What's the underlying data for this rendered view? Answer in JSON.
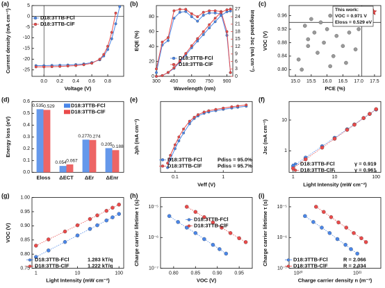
{
  "chart_data": [
    {
      "type": "line",
      "label": "(a)",
      "xlabel": "Voltage (V)",
      "ylabel": "Current density (mA cm⁻²)",
      "xlim": [
        -0.15,
        1.0
      ],
      "xticks": [
        {
          "value": 0,
          "label": "0.0"
        },
        0.2,
        0.4,
        0.6,
        0.8
      ],
      "ylim": [
        -28,
        5
      ],
      "yticks": [
        -25,
        -20,
        -15,
        -10,
        -5,
        0,
        5
      ],
      "zero_lines": true,
      "x": [
        -0.1,
        0,
        0.1,
        0.2,
        0.3,
        0.4,
        0.5,
        0.6,
        0.7,
        0.75,
        0.8,
        0.85,
        0.9,
        0.95
      ],
      "series": [
        {
          "name": "D18:3TTB-FCl",
          "color": "#4a86e8",
          "mode": "line+markers",
          "values": [
            -23.0,
            -23.0,
            -22.9,
            -22.8,
            -22.7,
            -22.5,
            -22.2,
            -21.6,
            -20.3,
            -18.5,
            -15.5,
            -10.5,
            -3.5,
            4.5
          ]
        },
        {
          "name": "D18:3TTB-ClF",
          "color": "#ea4a4a",
          "mode": "line+markers",
          "values": [
            -23.6,
            -23.6,
            -23.5,
            -23.4,
            -23.2,
            -23.0,
            -22.6,
            -21.9,
            -20.0,
            -17.8,
            -14.0,
            -7.5,
            1.5,
            null
          ]
        }
      ]
    },
    {
      "type": "line",
      "label": "(b)",
      "xlabel": "Wavelength (nm)",
      "ylabel": "EQE (%)",
      "y2label": "Integrated Jsc (mA cm⁻²)",
      "xlim": [
        300,
        950
      ],
      "xticks": [
        300,
        450,
        600,
        750,
        900
      ],
      "ylim": [
        0,
        95
      ],
      "yticks": [
        0,
        20,
        40,
        60,
        80
      ],
      "y2lim": [
        0,
        28.5
      ],
      "y2ticks": [
        0,
        3,
        6,
        9,
        12,
        15,
        18,
        21,
        24,
        27
      ],
      "x": [
        300,
        350,
        400,
        450,
        500,
        550,
        600,
        650,
        700,
        750,
        800,
        850,
        900,
        930
      ],
      "series": [
        {
          "name": "D18:3TTB-FCl",
          "color": "#4a86e8",
          "mode": "line+markers",
          "values": [
            5,
            42,
            48,
            78,
            86,
            87,
            80,
            74,
            82,
            85,
            85,
            84,
            55,
            5
          ]
        },
        {
          "name": "D18:3TTB-ClF",
          "color": "#ea4a4a",
          "mode": "line+markers",
          "values": [
            10,
            46,
            52,
            88,
            90,
            90,
            84,
            80,
            86,
            88,
            88,
            87,
            60,
            5
          ]
        },
        {
          "name": "D18:3TTB-FCl",
          "color": "#4a86e8",
          "mode": "line+markers",
          "axis": "y2",
          "values": [
            0,
            0.3,
            1.5,
            3.2,
            5.8,
            8.6,
            11.5,
            14.2,
            16.8,
            19.5,
            22,
            24.5,
            26,
            26.3
          ]
        },
        {
          "name": "D18:3TTB-ClF",
          "color": "#ea4a4a",
          "mode": "line+markers",
          "axis": "y2",
          "values": [
            0,
            0.3,
            1.6,
            3.5,
            6.2,
            9.2,
            12.3,
            15.2,
            18,
            20.8,
            23.4,
            25.8,
            26.8,
            27.1
          ]
        }
      ]
    },
    {
      "type": "scatter",
      "label": "(c)",
      "xlabel": "PCE (%)",
      "ylabel": "VOC (V)",
      "xlim": [
        14.8,
        17.7
      ],
      "xticks": [
        {
          "value": 15,
          "label": "15.0"
        },
        15.5,
        {
          "value": 16,
          "label": "16.0"
        },
        16.5,
        {
          "value": 17,
          "label": "17.0"
        },
        17.5
      ],
      "ylim": [
        0.78,
        0.99
      ],
      "yticks": [
        {
          "value": 0.8,
          "label": "0.80"
        },
        0.84,
        0.88,
        0.92,
        0.96
      ],
      "ref_lines": {
        "x": 17.1,
        "y": 0.94
      },
      "annotations": [
        "This work:",
        "VOC = 0.971 V",
        "Eloss = 0.529 eV"
      ],
      "series": [
        {
          "color": "#9a9a9a",
          "mode": "markers",
          "x": [
            15.1,
            15.2,
            15.3,
            15.4,
            15.5,
            15.6,
            15.7,
            15.8,
            15.9,
            16.0,
            16.1,
            16.2,
            16.3,
            16.4,
            16.5,
            16.6,
            16.7,
            16.9,
            17.0,
            17.3,
            15.4,
            16.1
          ],
          "values": [
            0.83,
            0.8,
            0.93,
            0.89,
            0.95,
            0.91,
            0.85,
            0.94,
            0.88,
            0.92,
            0.96,
            0.84,
            0.9,
            0.96,
            0.87,
            0.82,
            0.91,
            0.86,
            0.92,
            0.94,
            0.87,
            0.81
          ]
        },
        {
          "color": "#ea4a4a",
          "mode": "markers",
          "marker": "star",
          "x": [
            17.46
          ],
          "values": [
            0.971
          ]
        }
      ]
    },
    {
      "type": "bar",
      "label": "(d)",
      "ylabel": "Energy loss (eV)",
      "categories": [
        "Eloss",
        "ΔECT",
        "ΔEr",
        "ΔEnr"
      ],
      "ylim": [
        0,
        0.6
      ],
      "yticks": [
        {
          "value": 0,
          "label": "0.0"
        },
        0.1,
        0.2,
        0.3,
        0.4,
        0.5,
        0.6
      ],
      "series": [
        {
          "name": "D18:3TTB-FCl",
          "color": "#4a86e8",
          "values": [
            0.535,
            0.054,
            0.277,
            0.205
          ]
        },
        {
          "name": "D18:3TTB-ClF",
          "color": "#ea4a4a",
          "values": [
            0.529,
            0.067,
            0.274,
            0.188
          ]
        }
      ]
    },
    {
      "type": "line",
      "label": "(e)",
      "xlabel": "Veff (V)",
      "ylabel": "Jph (mA cm⁻²)",
      "xlog": true,
      "xlim": [
        0.05,
        4
      ],
      "xticks": [
        0.1,
        1
      ],
      "ylim": [
        0,
        27
      ],
      "annotations": [
        "Pdiss = 95.0%",
        "Pdiss = 95.7%"
      ],
      "x": [
        0.07,
        0.08,
        0.1,
        0.12,
        0.15,
        0.2,
        0.25,
        0.3,
        0.4,
        0.5,
        0.7,
        1,
        1.5,
        2,
        3
      ],
      "series": [
        {
          "name": "D18:3TTB-FCl",
          "color": "#4a86e8",
          "mode": "line+markers",
          "values": [
            1.8,
            5,
            9,
            12,
            15,
            18.5,
            20.5,
            21.5,
            22.5,
            23,
            23.5,
            24,
            24.5,
            24.8,
            25.2
          ]
        },
        {
          "name": "D18:3TTB-ClF",
          "color": "#ea4a4a",
          "mode": "line+markers",
          "values": [
            3.5,
            6.5,
            10.5,
            13.5,
            16.5,
            19.5,
            21,
            22,
            23,
            23.5,
            24,
            24.5,
            25,
            25.3,
            25.7
          ]
        }
      ]
    },
    {
      "type": "scatter",
      "label": "(f)",
      "xlabel": "Light Intensity (mW cm⁻²)",
      "ylabel": "Jsc (mA cm⁻²)",
      "xlog": true,
      "ylog": true,
      "xlim": [
        0.8,
        130
      ],
      "xticks": [
        1,
        10,
        100
      ],
      "ylim": [
        0.2,
        40
      ],
      "yticks": [
        1,
        10
      ],
      "annotations": [
        "γ = 0.919",
        "γ = 0.961"
      ],
      "x": [
        1,
        2,
        5,
        10,
        20,
        30,
        50,
        70,
        100
      ],
      "series": [
        {
          "name": "D18:3TTB-FCl",
          "color": "#4a86e8",
          "mode": "markers+fit",
          "values": [
            0.32,
            0.6,
            1.41,
            2.65,
            4.99,
            7.2,
            11.6,
            15.8,
            22.0
          ]
        },
        {
          "name": "D18:3TTB-ClF",
          "color": "#ea4a4a",
          "mode": "markers+fit",
          "values": [
            0.27,
            0.53,
            1.27,
            2.47,
            4.81,
            7.05,
            11.6,
            15.9,
            22.6
          ]
        }
      ]
    },
    {
      "type": "scatter",
      "label": "(g)",
      "xlabel": "Light Intensity (mW cm⁻²)",
      "ylabel": "VOC (V)",
      "xlog": true,
      "xlim": [
        0.8,
        130
      ],
      "xticks": [
        1,
        10,
        100
      ],
      "ylim": [
        0.75,
        1.0
      ],
      "yticks": [
        0.75,
        {
          "value": 0.8,
          "label": "0.80"
        },
        0.85,
        {
          "value": 0.9,
          "label": "0.90"
        },
        0.95,
        {
          "value": 1,
          "label": "1.00"
        }
      ],
      "annotations": [
        "1.283 kT/q",
        "1.222 kT/q"
      ],
      "x": [
        1,
        2,
        5,
        10,
        20,
        30,
        50,
        70,
        100
      ],
      "series": [
        {
          "name": "D18:3TTB-FCl",
          "color": "#4a86e8",
          "mode": "markers+fit",
          "values": [
            0.79,
            0.813,
            0.843,
            0.866,
            0.889,
            0.902,
            0.919,
            0.93,
            0.942
          ]
        },
        {
          "name": "D18:3TTB-ClF",
          "color": "#ea4a4a",
          "mode": "markers+fit",
          "values": [
            0.83,
            0.852,
            0.88,
            0.902,
            0.924,
            0.937,
            0.953,
            0.964,
            0.975
          ]
        }
      ]
    },
    {
      "type": "scatter",
      "label": "(h)",
      "xlabel": "VOC (V)",
      "ylabel": "Charge carrier lifetime τ (s)",
      "ylog": true,
      "xlim": [
        0.77,
        0.98
      ],
      "xticks": [
        {
          "value": 0.8,
          "label": "0.80"
        },
        0.85,
        {
          "value": 0.9,
          "label": "0.90"
        },
        0.95
      ],
      "ylim": [
        1e-07,
        2e-05
      ],
      "yticks": [
        {
          "value": 1e-07,
          "label": "10⁻⁷"
        },
        {
          "value": 1e-06,
          "label": "10⁻⁶"
        },
        {
          "value": 1e-05,
          "label": "10⁻⁵"
        }
      ],
      "series": [
        {
          "name": "D18:3TTB-FCl",
          "color": "#4a86e8",
          "mode": "markers+fit",
          "x": [
            0.79,
            0.81,
            0.83,
            0.85,
            0.87,
            0.89,
            0.905,
            0.92
          ],
          "values": [
            5e-06,
            3.2e-06,
            2.1e-06,
            1.4e-06,
            8.9e-07,
            5.8e-07,
            4.2e-07,
            3e-07
          ]
        },
        {
          "name": "D18:3TTB-ClF",
          "color": "#ea4a4a",
          "mode": "markers+fit",
          "x": [
            0.83,
            0.85,
            0.87,
            0.89,
            0.91,
            0.93,
            0.95,
            0.965
          ],
          "values": [
            1e-05,
            6.8e-06,
            4.6e-06,
            3.1e-06,
            2.1e-06,
            1.4e-06,
            9.5e-07,
            7.1e-07
          ]
        }
      ]
    },
    {
      "type": "scatter",
      "label": "(i)",
      "xlabel": "Charge carrier density n (m⁻³)",
      "ylabel": "Charge carrier lifetime τ (s)",
      "xlog": true,
      "ylog": true,
      "xlim": [
        7e+19,
        2.5e+21
      ],
      "xticks": [
        {
          "value": 1e+20,
          "label": "10²⁰"
        },
        {
          "value": 1e+21,
          "label": "10²¹"
        }
      ],
      "ylim": [
        1e-07,
        2e-05
      ],
      "yticks": [
        {
          "value": 1e-07,
          "label": "10⁻⁷"
        },
        {
          "value": 1e-06,
          "label": "10⁻⁶"
        },
        {
          "value": 1e-05,
          "label": "10⁻⁵"
        }
      ],
      "annotations": [
        "R = 2.066",
        "R = 2.034"
      ],
      "series": [
        {
          "name": "D18:3TTB-FCl",
          "color": "#4a86e8",
          "mode": "markers+fit",
          "x": [
            1.3e+20,
            1.8e+20,
            2.5e+20,
            3.4e+20,
            4.6e+20,
            6.3e+20,
            7.8e+20,
            1e+21
          ],
          "values": [
            5e-06,
            3.2e-06,
            2.1e-06,
            1.4e-06,
            8.9e-07,
            5.8e-07,
            4.2e-07,
            3e-07
          ]
        },
        {
          "name": "D18:3TTB-ClF",
          "color": "#ea4a4a",
          "mode": "markers+fit",
          "x": [
            2e+20,
            2.7e+20,
            3.6e+20,
            4.8e+20,
            6.5e+20,
            8.7e+20,
            1.17e+21,
            1.4e+21
          ],
          "values": [
            1e-05,
            6.8e-06,
            4.6e-06,
            3.1e-06,
            2.1e-06,
            1.4e-06,
            9.5e-07,
            7.1e-07
          ]
        }
      ]
    }
  ]
}
